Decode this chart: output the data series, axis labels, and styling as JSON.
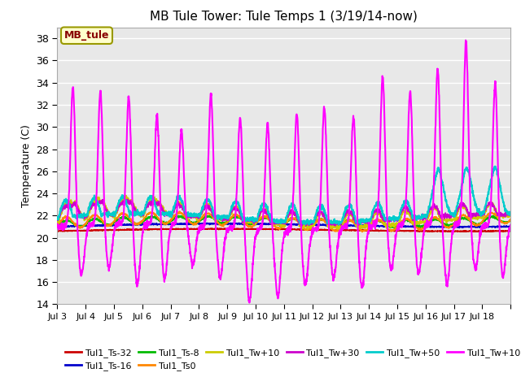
{
  "title": "MB Tule Tower: Tule Temps 1 (3/19/14-now)",
  "ylabel": "Temperature (C)",
  "ylim": [
    14,
    39
  ],
  "yticks": [
    14,
    16,
    18,
    20,
    22,
    24,
    26,
    28,
    30,
    32,
    34,
    36,
    38
  ],
  "x_labels": [
    "Jul 3",
    "Jul 4",
    "Jul 5",
    "Jul 6",
    "Jul 7",
    "Jul 8",
    "Jul 9",
    "Jul 10",
    "Jul 11",
    "Jul 12",
    "Jul 13",
    "Jul 14",
    "Jul 15",
    "Jul 16",
    "Jul 17",
    "Jul 18"
  ],
  "n_days": 16,
  "legend_box_label": "MB_tule",
  "series": [
    {
      "name": "Tul1_Ts-32",
      "color": "#cc0000",
      "lw": 1.2
    },
    {
      "name": "Tul1_Ts-16",
      "color": "#0000cc",
      "lw": 1.2
    },
    {
      "name": "Tul1_Ts-8",
      "color": "#00bb00",
      "lw": 1.2
    },
    {
      "name": "Tul1_Ts0",
      "color": "#ff8800",
      "lw": 1.2
    },
    {
      "name": "Tul1_Tw+10",
      "color": "#cccc00",
      "lw": 1.2
    },
    {
      "name": "Tul1_Tw+30",
      "color": "#cc00cc",
      "lw": 1.2
    },
    {
      "name": "Tul1_Tw+50",
      "color": "#00cccc",
      "lw": 1.5
    },
    {
      "name": "Tul1_Tw+100",
      "color": "#ff00ff",
      "lw": 1.5
    }
  ],
  "background_color": "#ffffff",
  "plot_bg_color": "#e8e8e8",
  "grid_color": "#ffffff",
  "title_fontsize": 11,
  "spike_heights": [
    12.5,
    12.0,
    11.5,
    10.0,
    8.5,
    12.0,
    10.0,
    9.5,
    10.5,
    11.0,
    10.0,
    13.5,
    12.0,
    14.0,
    16.5,
    13.0
  ],
  "trough_depths": [
    4.5,
    4.0,
    5.5,
    5.0,
    3.5,
    4.5,
    6.5,
    6.0,
    5.0,
    4.5,
    5.5,
    4.0,
    4.5,
    5.5,
    4.0,
    4.5
  ],
  "spike_positions": [
    0.55,
    1.52,
    2.52,
    3.52,
    4.38,
    5.42,
    6.45,
    7.42,
    8.45,
    9.42,
    10.45,
    11.48,
    12.45,
    13.42,
    14.42,
    15.45
  ],
  "trough_positions": [
    0.85,
    1.82,
    2.82,
    3.78,
    4.78,
    5.75,
    6.78,
    7.78,
    8.75,
    9.75,
    10.75,
    11.78,
    12.75,
    13.75,
    14.75,
    15.72
  ]
}
